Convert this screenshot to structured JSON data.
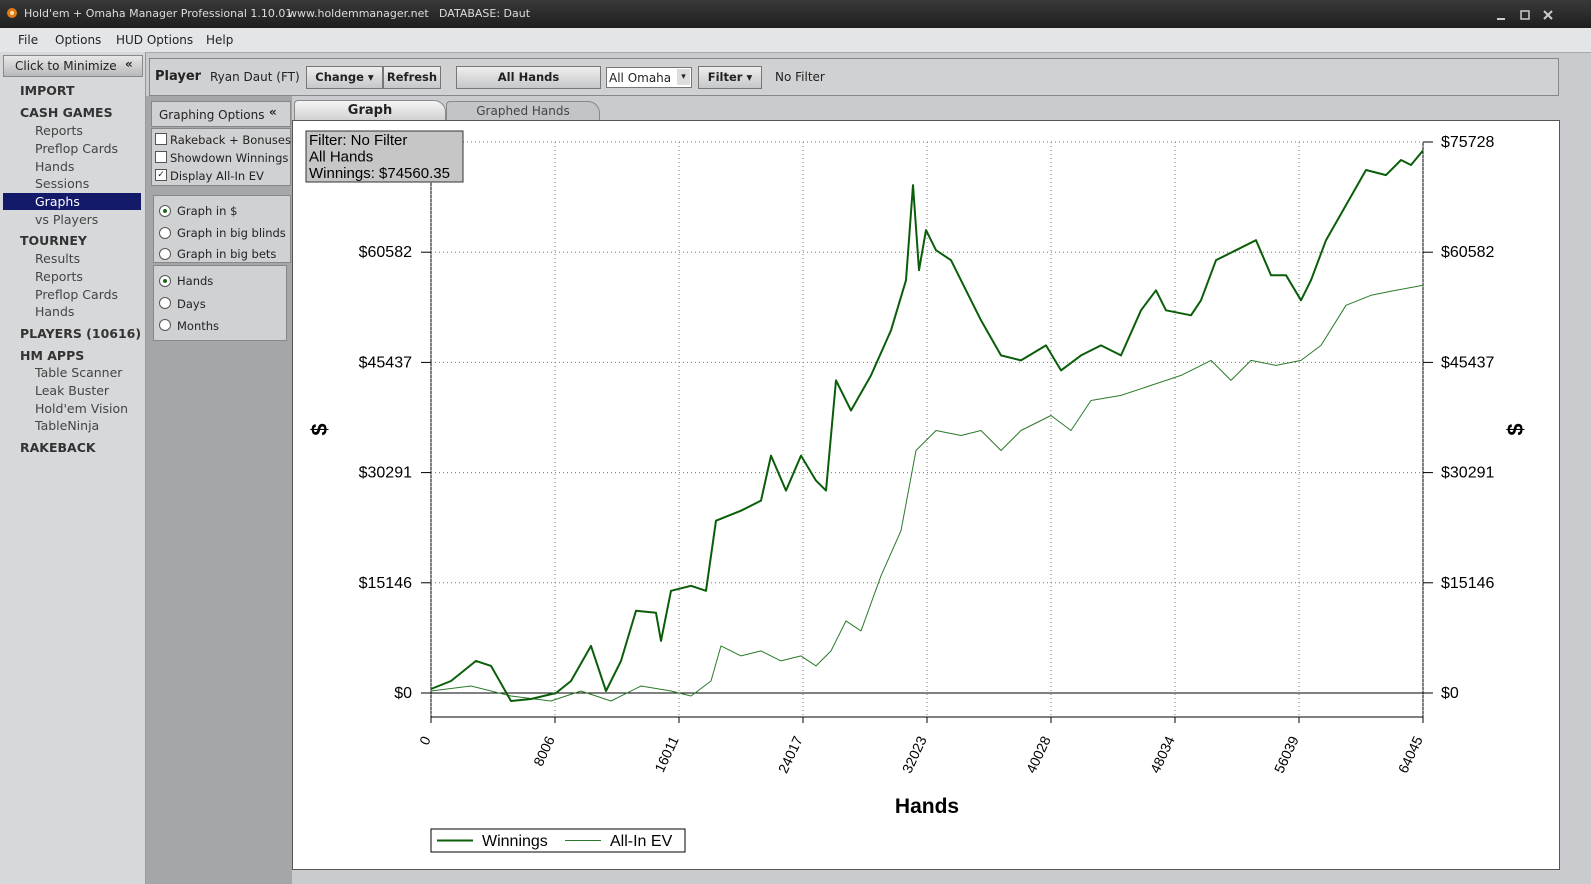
{
  "window": {
    "title": "Hold'em + Omaha Manager Professional 1.10.01",
    "url": "www.holdemmanager.net",
    "database": "DATABASE: Daut"
  },
  "menu": [
    "File",
    "Options",
    "HUD Options",
    "Help"
  ],
  "sidebar": {
    "minimize": "Click to Minimize",
    "sections": [
      {
        "title": "IMPORT",
        "items": []
      },
      {
        "title": "CASH GAMES",
        "items": [
          "Reports",
          "Preflop Cards",
          "Hands",
          "Sessions",
          "Graphs",
          "vs Players"
        ]
      },
      {
        "title": "TOURNEY",
        "items": [
          "Results",
          "Reports",
          "Preflop Cards",
          "Hands"
        ]
      },
      {
        "title": "PLAYERS (10616)",
        "items": []
      },
      {
        "title": "HM APPS",
        "items": [
          "Table Scanner",
          "Leak Buster",
          "Hold'em Vision",
          "TableNinja"
        ]
      },
      {
        "title": "RAKEBACK",
        "items": []
      }
    ]
  },
  "toolbar": {
    "player_label": "Player",
    "player": "Ryan Daut (FT)",
    "change": "Change",
    "refresh": "Refresh",
    "hands": "All Hands",
    "game": "All Omaha",
    "filter": "Filter",
    "filter_status": "No Filter"
  },
  "graphing_options": {
    "title": "Graphing Options",
    "checkboxes": [
      "Rakeback + Bonuses",
      "Showdown Winnings",
      "Display All-In EV"
    ],
    "units": [
      "Graph in $",
      "Graph in big blinds",
      "Graph in big bets"
    ],
    "period": [
      "Hands",
      "Days",
      "Months"
    ]
  },
  "tabs": [
    "Graph",
    "Graphed Hands"
  ],
  "chart_data": {
    "type": "line",
    "xlabel": "Hands",
    "ylabel": "$",
    "annotation": [
      "Filter: No Filter",
      "All Hands",
      "Winnings: $74560.35"
    ],
    "xlim": [
      0,
      64045
    ],
    "xticks": [
      0,
      8006,
      16011,
      24017,
      32023,
      40028,
      48034,
      56039,
      64045
    ],
    "ylim": [
      -3300,
      75728
    ],
    "yticks": [
      {
        "value": 0,
        "label": "$0"
      },
      {
        "value": 15146,
        "label": "$15146"
      },
      {
        "value": 30291,
        "label": "$30291"
      },
      {
        "value": 45437,
        "label": "$45437"
      },
      {
        "value": 60582,
        "label": "$60582"
      },
      {
        "value": 75728,
        "label": "$75728"
      }
    ],
    "grid": true,
    "series": [
      {
        "name": "Winnings",
        "color": "#0a5e0a",
        "width": 2,
        "x": [
          0,
          1291,
          2905,
          3874,
          5165,
          6456,
          8070,
          9038,
          10330,
          11298,
          12266,
          13235,
          14526,
          14849,
          15494,
          16786,
          17754,
          18400,
          20014,
          21305,
          21950,
          22918,
          23887,
          24856,
          25501,
          26147,
          27115,
          28406,
          29698,
          30666,
          31118,
          31505,
          31957,
          32603,
          33571,
          34540,
          35508,
          36799,
          38090,
          39704,
          40673,
          41964,
          43255,
          44546,
          45838,
          46806,
          47452,
          49066,
          49711,
          50680,
          51971,
          53262,
          54230,
          55199,
          56167,
          56813,
          57781,
          59072,
          60364,
          61655,
          62623,
          63269,
          64045
        ],
        "values": [
          551,
          1652,
          4406,
          3718,
          -1102,
          -826,
          0,
          1652,
          6471,
          275,
          4406,
          11291,
          11015,
          7160,
          14044,
          14733,
          14044,
          23683,
          25060,
          26436,
          32633,
          27813,
          32633,
          29190,
          27813,
          42959,
          38828,
          43647,
          49843,
          56728,
          69808,
          58105,
          63613,
          60858,
          59482,
          55351,
          51220,
          46401,
          45712,
          47778,
          44336,
          46401,
          47778,
          46401,
          52598,
          55351,
          52598,
          51909,
          53975,
          59482,
          60858,
          62235,
          57416,
          57416,
          53975,
          56728,
          62235,
          67054,
          71873,
          71185,
          73250,
          72562,
          74560
        ]
      },
      {
        "name": "All-In EV",
        "color": "#2a7a2a",
        "width": 1,
        "x": [
          0,
          2582,
          5165,
          7747,
          9684,
          11621,
          13558,
          15494,
          16786,
          18077,
          18722,
          20014,
          21305,
          22596,
          23887,
          24856,
          25824,
          26793,
          27761,
          29052,
          30343,
          31312,
          32603,
          34217,
          35508,
          36799,
          38090,
          40027,
          41318,
          42610,
          44546,
          46483,
          48420,
          50357,
          51648,
          52939,
          54553,
          56167,
          57458,
          59072,
          60686,
          62300,
          64045
        ],
        "values": [
          275,
          964,
          -413,
          -1102,
          275,
          -1102,
          964,
          275,
          -413,
          1652,
          6471,
          5095,
          5783,
          4406,
          5095,
          3718,
          5783,
          9914,
          8537,
          16110,
          22306,
          33321,
          36075,
          35386,
          36075,
          33321,
          36075,
          38140,
          36075,
          40205,
          40894,
          42271,
          43647,
          45712,
          42959,
          45712,
          45024,
          45712,
          47778,
          53286,
          54663,
          55351,
          56040
        ]
      }
    ]
  }
}
